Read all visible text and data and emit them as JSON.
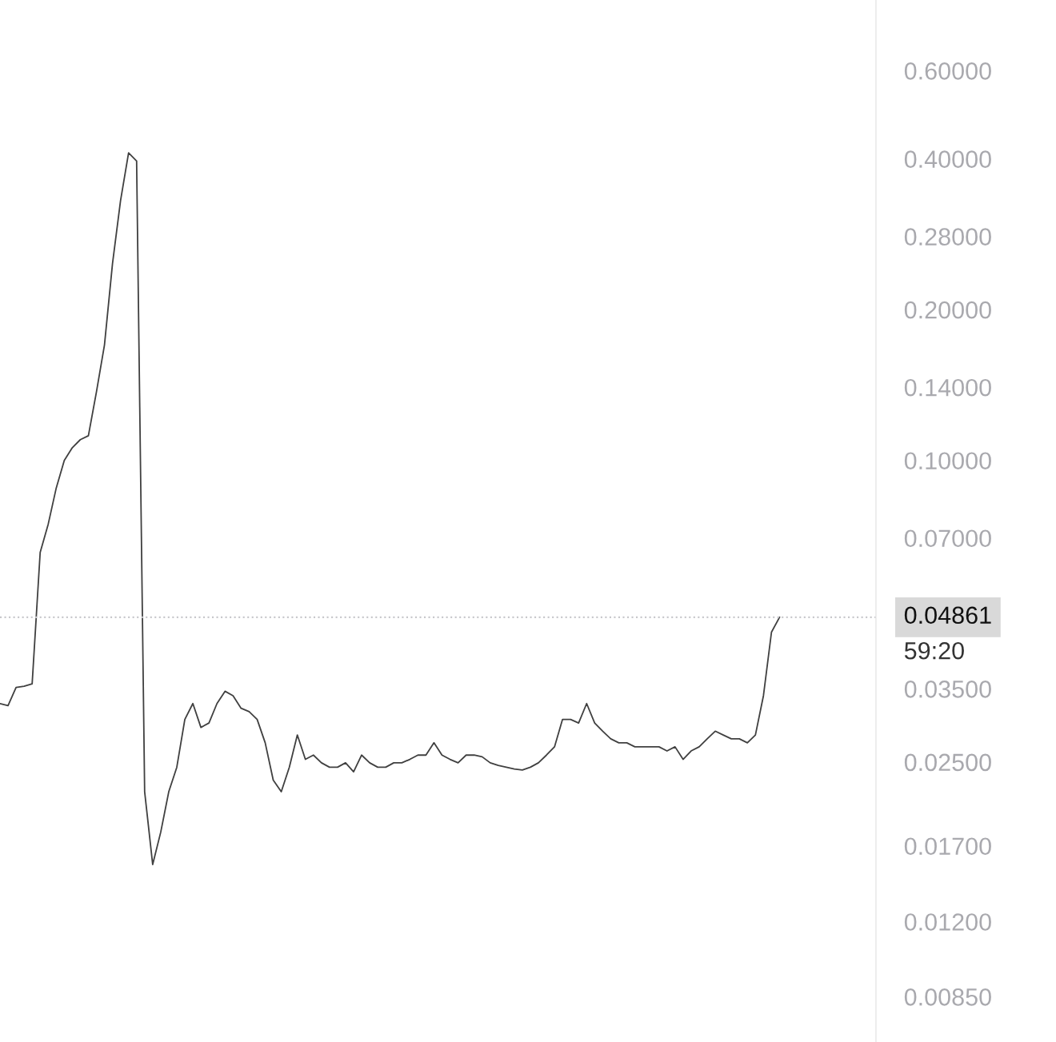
{
  "chart_data": {
    "type": "line",
    "log": "y",
    "grid": false,
    "legend": false,
    "tick_labels": "y",
    "marker": "none",
    "line_style": "solid",
    "categories": [
      null,
      null,
      null,
      null,
      null,
      null,
      null,
      null,
      null,
      null,
      null,
      null,
      null,
      null,
      null,
      null,
      null,
      null,
      null,
      null,
      null,
      null,
      null,
      null,
      null,
      null,
      null,
      null,
      null,
      null,
      null,
      null,
      null,
      null,
      null,
      null,
      null,
      null,
      null,
      null,
      null,
      null,
      null,
      null,
      null,
      null,
      null,
      null,
      null,
      null,
      null,
      null,
      null,
      null,
      null,
      null,
      null,
      null,
      null,
      null,
      null,
      null,
      null,
      null,
      null,
      null,
      null,
      null,
      null,
      null,
      null,
      null,
      null,
      null,
      null,
      null,
      null,
      null,
      null,
      null,
      null,
      null,
      null,
      null,
      null,
      null,
      null,
      null,
      null,
      null,
      null,
      null,
      null,
      null,
      null,
      null,
      null,
      null,
      null,
      null,
      null,
      null,
      null,
      null,
      null,
      null,
      null,
      null,
      null,
      null
    ],
    "series": [
      {
        "color": "#404040",
        "values": [
          0.0327,
          0.0324,
          0.0352,
          0.0354,
          0.0358,
          0.0655,
          0.0746,
          0.0881,
          0.1,
          0.106,
          0.11,
          0.112,
          0.137,
          0.17,
          0.247,
          0.33,
          0.411,
          0.396,
          0.0218,
          0.0156,
          0.0181,
          0.0218,
          0.0244,
          0.0304,
          0.0327,
          0.0293,
          0.0299,
          0.0327,
          0.0346,
          0.0339,
          0.032,
          0.0315,
          0.0304,
          0.0273,
          0.023,
          0.0218,
          0.0244,
          0.0283,
          0.0253,
          0.0258,
          0.0249,
          0.0244,
          0.0244,
          0.0249,
          0.0239,
          0.0258,
          0.0249,
          0.0244,
          0.0244,
          0.0249,
          0.0249,
          0.0253,
          0.0258,
          0.0258,
          0.0273,
          0.0258,
          0.0253,
          0.0249,
          0.0258,
          0.0258,
          0.0256,
          0.0249,
          0.0246,
          0.0244,
          0.0242,
          0.0241,
          0.0244,
          0.0249,
          0.0258,
          0.0268,
          0.0304,
          0.0304,
          0.0299,
          0.0327,
          0.0299,
          0.0288,
          0.0278,
          0.0273,
          0.0273,
          0.0268,
          0.0268,
          0.0268,
          0.0268,
          0.0263,
          0.0268,
          0.0253,
          0.0263,
          0.0268,
          0.0278,
          0.0288,
          0.0283,
          0.0278,
          0.0278,
          0.0273,
          0.0283,
          0.0339,
          0.0454,
          0.04861,
          null,
          null,
          null,
          null,
          null,
          null,
          null,
          null,
          null,
          null,
          null,
          null
        ]
      }
    ],
    "ylim": [
      0.0069,
      0.83
    ],
    "yticks": [
      {
        "value": 0.6,
        "label": "0.60000"
      },
      {
        "value": 0.4,
        "label": "0.40000"
      },
      {
        "value": 0.28,
        "label": "0.28000"
      },
      {
        "value": 0.2,
        "label": "0.20000"
      },
      {
        "value": 0.14,
        "label": "0.14000"
      },
      {
        "value": 0.1,
        "label": "0.10000"
      },
      {
        "value": 0.07,
        "label": "0.07000"
      },
      {
        "value": 0.035,
        "label": "0.03500"
      },
      {
        "value": 0.025,
        "label": "0.02500"
      },
      {
        "value": 0.017,
        "label": "0.01700"
      },
      {
        "value": 0.012,
        "label": "0.01200"
      },
      {
        "value": 0.0085,
        "label": "0.00850"
      }
    ],
    "ref_lines": [
      {
        "axis": "y",
        "value": 0.04861,
        "label": "0.04861",
        "color": "#c8c8cc",
        "line_style": "dotted"
      }
    ],
    "annotations": [
      "59:20"
    ]
  }
}
